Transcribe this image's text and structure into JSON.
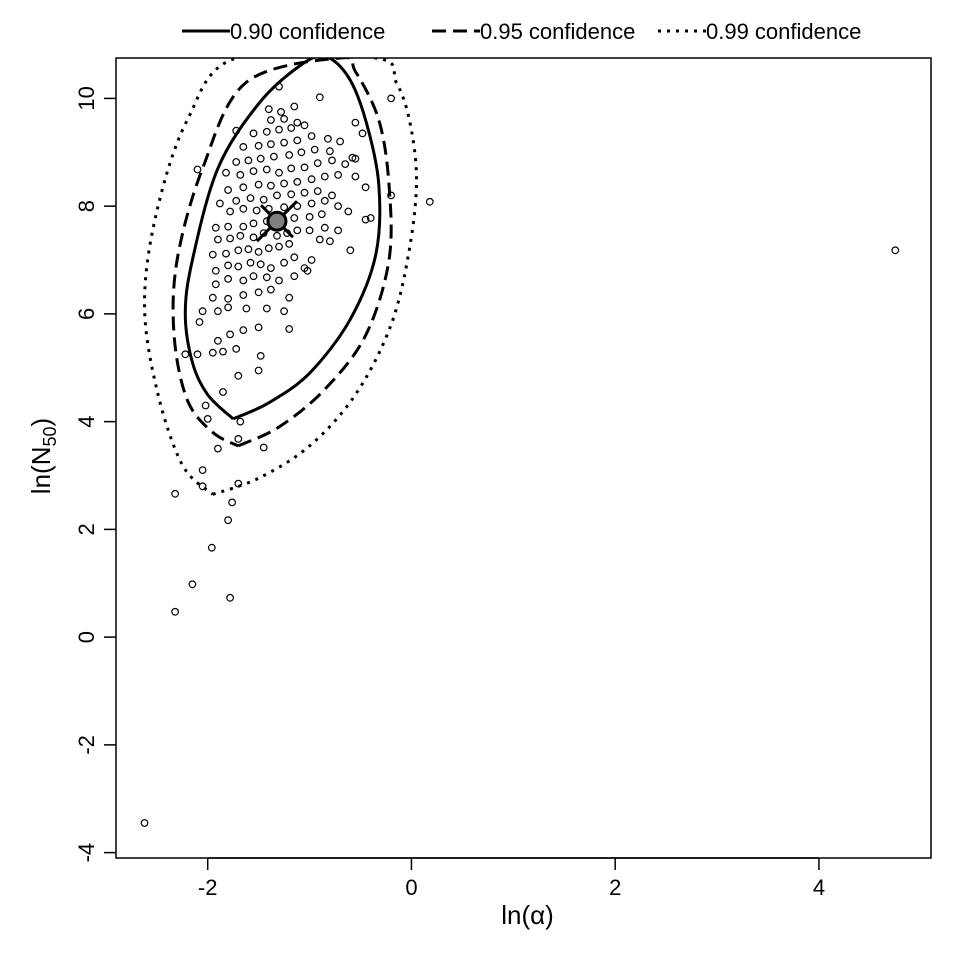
{
  "chart_data": {
    "type": "scatter",
    "xlabel": "ln(α)",
    "ylabel": "ln(N50)",
    "ylabel_parts": {
      "pre": "ln(",
      "sub": "50",
      "post": ")",
      "base": "N"
    },
    "xlim": [
      -2.9,
      5.1
    ],
    "ylim": [
      -4.1,
      10.75
    ],
    "x_ticks": [
      -2,
      0,
      2,
      4
    ],
    "y_ticks": [
      -4,
      -2,
      0,
      2,
      4,
      6,
      8,
      10
    ],
    "x_tick_labels": [
      "-2",
      "0",
      "2",
      "4"
    ],
    "y_tick_labels": [
      "-4",
      "-2",
      "0",
      "2",
      "4",
      "6",
      "8",
      "10"
    ],
    "legend": {
      "placement": "top",
      "entries": [
        {
          "label": "0.90 confidence",
          "style": "solid"
        },
        {
          "label": "0.95 confidence",
          "style": "dashed"
        },
        {
          "label": "0.99 confidence",
          "style": "dotted"
        }
      ]
    },
    "best_estimate": {
      "x": -1.32,
      "y": 7.72
    },
    "ellipses": [
      {
        "confidence": 0.9,
        "style": "solid",
        "points": [
          [
            -1.75,
            4.05
          ],
          [
            -1.4,
            4.35
          ],
          [
            -1.0,
            4.9
          ],
          [
            -0.6,
            5.9
          ],
          [
            -0.35,
            7.1
          ],
          [
            -0.32,
            8.4
          ],
          [
            -0.45,
            9.6
          ],
          [
            -0.62,
            10.4
          ],
          [
            -0.85,
            10.78
          ],
          [
            -1.1,
            10.6
          ],
          [
            -1.5,
            9.9
          ],
          [
            -1.9,
            8.7
          ],
          [
            -2.15,
            7.0
          ],
          [
            -2.22,
            6.0
          ],
          [
            -2.15,
            5.1
          ],
          [
            -2.0,
            4.5
          ],
          [
            -1.75,
            4.05
          ]
        ]
      },
      {
        "confidence": 0.95,
        "style": "dashed",
        "points": [
          [
            -1.7,
            3.55
          ],
          [
            -1.3,
            3.9
          ],
          [
            -0.85,
            4.6
          ],
          [
            -0.45,
            5.6
          ],
          [
            -0.22,
            7.0
          ],
          [
            -0.22,
            8.4
          ],
          [
            -0.32,
            9.6
          ],
          [
            -0.55,
            10.5
          ],
          [
            -0.7,
            10.75
          ],
          [
            -1.62,
            10.3
          ],
          [
            -2.05,
            8.7
          ],
          [
            -2.3,
            7.0
          ],
          [
            -2.33,
            5.6
          ],
          [
            -2.2,
            4.4
          ],
          [
            -1.95,
            3.8
          ],
          [
            -1.7,
            3.55
          ]
        ]
      },
      {
        "confidence": 0.99,
        "style": "dotted",
        "points": [
          [
            -1.95,
            2.65
          ],
          [
            -1.5,
            2.95
          ],
          [
            -1.0,
            3.55
          ],
          [
            -0.55,
            4.5
          ],
          [
            -0.2,
            5.8
          ],
          [
            -0.02,
            7.2
          ],
          [
            0.05,
            8.5
          ],
          [
            -0.02,
            9.6
          ],
          [
            -0.15,
            10.3
          ],
          [
            -0.35,
            10.75
          ],
          [
            -1.72,
            10.75
          ],
          [
            -2.2,
            9.6
          ],
          [
            -2.5,
            7.9
          ],
          [
            -2.62,
            6.2
          ],
          [
            -2.5,
            4.6
          ],
          [
            -2.25,
            3.2
          ],
          [
            -1.95,
            2.65
          ]
        ]
      }
    ],
    "points": [
      [
        -2.62,
        -3.45
      ],
      [
        -2.32,
        0.47
      ],
      [
        -2.15,
        0.98
      ],
      [
        -1.78,
        0.73
      ],
      [
        -1.96,
        1.66
      ],
      [
        -1.8,
        2.17
      ],
      [
        -1.76,
        2.5
      ],
      [
        -2.32,
        2.66
      ],
      [
        -2.05,
        2.8
      ],
      [
        -1.7,
        2.85
      ],
      [
        -2.05,
        3.1
      ],
      [
        -1.9,
        3.5
      ],
      [
        -1.45,
        3.52
      ],
      [
        -1.7,
        3.68
      ],
      [
        -2.0,
        4.05
      ],
      [
        -2.02,
        4.3
      ],
      [
        -1.68,
        4.0
      ],
      [
        -1.85,
        4.55
      ],
      [
        -1.5,
        4.95
      ],
      [
        -1.7,
        4.85
      ],
      [
        -1.48,
        5.22
      ],
      [
        -2.22,
        5.25
      ],
      [
        -2.1,
        5.25
      ],
      [
        -1.95,
        5.28
      ],
      [
        -1.85,
        5.3
      ],
      [
        -1.72,
        5.35
      ],
      [
        -1.9,
        5.5
      ],
      [
        -1.78,
        5.62
      ],
      [
        -1.65,
        5.7
      ],
      [
        -1.5,
        5.75
      ],
      [
        -1.2,
        5.72
      ],
      [
        -2.08,
        5.85
      ],
      [
        -2.05,
        6.05
      ],
      [
        -1.9,
        6.05
      ],
      [
        -1.8,
        6.12
      ],
      [
        -1.62,
        6.1
      ],
      [
        -1.42,
        6.1
      ],
      [
        -1.25,
        6.05
      ],
      [
        -1.95,
        6.3
      ],
      [
        -1.8,
        6.28
      ],
      [
        -1.65,
        6.35
      ],
      [
        -1.5,
        6.4
      ],
      [
        -1.38,
        6.45
      ],
      [
        -1.2,
        6.3
      ],
      [
        -1.92,
        6.55
      ],
      [
        -1.8,
        6.65
      ],
      [
        -1.65,
        6.62
      ],
      [
        -1.55,
        6.7
      ],
      [
        -1.42,
        6.68
      ],
      [
        -1.3,
        6.62
      ],
      [
        -1.15,
        6.7
      ],
      [
        -1.05,
        6.85
      ],
      [
        -0.98,
        7.0
      ],
      [
        -1.02,
        6.8
      ],
      [
        -1.92,
        6.8
      ],
      [
        -1.8,
        6.9
      ],
      [
        -1.7,
        6.88
      ],
      [
        -1.58,
        6.95
      ],
      [
        -1.48,
        6.92
      ],
      [
        -1.38,
        6.85
      ],
      [
        -1.25,
        6.95
      ],
      [
        -1.15,
        7.05
      ],
      [
        -1.95,
        7.1
      ],
      [
        -1.82,
        7.12
      ],
      [
        -1.7,
        7.18
      ],
      [
        -1.6,
        7.2
      ],
      [
        -1.5,
        7.15
      ],
      [
        -1.4,
        7.22
      ],
      [
        -1.3,
        7.25
      ],
      [
        -1.2,
        7.3
      ],
      [
        -0.9,
        7.38
      ],
      [
        -0.8,
        7.35
      ],
      [
        -0.6,
        7.18
      ],
      [
        -1.9,
        7.38
      ],
      [
        -1.78,
        7.4
      ],
      [
        -1.68,
        7.45
      ],
      [
        -1.55,
        7.42
      ],
      [
        -1.45,
        7.5
      ],
      [
        -1.32,
        7.45
      ],
      [
        -1.22,
        7.5
      ],
      [
        -1.12,
        7.55
      ],
      [
        -1.0,
        7.55
      ],
      [
        -0.85,
        7.6
      ],
      [
        -0.72,
        7.55
      ],
      [
        -1.92,
        7.6
      ],
      [
        -1.8,
        7.62
      ],
      [
        -1.65,
        7.62
      ],
      [
        -1.55,
        7.68
      ],
      [
        -1.42,
        7.72
      ],
      [
        -1.28,
        7.75
      ],
      [
        -1.15,
        7.78
      ],
      [
        -1.0,
        7.8
      ],
      [
        -0.88,
        7.85
      ],
      [
        -0.45,
        7.75
      ],
      [
        -0.4,
        7.78
      ],
      [
        -1.78,
        7.9
      ],
      [
        -1.65,
        7.95
      ],
      [
        -1.52,
        7.92
      ],
      [
        -1.4,
        7.95
      ],
      [
        -1.25,
        7.98
      ],
      [
        -1.12,
        8.0
      ],
      [
        -0.98,
        8.05
      ],
      [
        -0.85,
        8.1
      ],
      [
        -0.72,
        8.0
      ],
      [
        -0.62,
        7.9
      ],
      [
        -1.88,
        8.05
      ],
      [
        -1.72,
        8.1
      ],
      [
        -1.58,
        8.15
      ],
      [
        -1.45,
        8.12
      ],
      [
        -1.32,
        8.2
      ],
      [
        -1.18,
        8.22
      ],
      [
        -1.05,
        8.25
      ],
      [
        -0.92,
        8.28
      ],
      [
        -0.78,
        8.2
      ],
      [
        -0.2,
        8.2
      ],
      [
        0.18,
        8.08
      ],
      [
        -1.8,
        8.3
      ],
      [
        -1.65,
        8.35
      ],
      [
        -1.5,
        8.4
      ],
      [
        -1.38,
        8.38
      ],
      [
        -1.25,
        8.42
      ],
      [
        -1.12,
        8.45
      ],
      [
        -0.98,
        8.5
      ],
      [
        -0.85,
        8.55
      ],
      [
        -0.72,
        8.58
      ],
      [
        -0.55,
        8.55
      ],
      [
        -0.45,
        8.35
      ],
      [
        -1.82,
        8.62
      ],
      [
        -1.68,
        8.58
      ],
      [
        -1.55,
        8.65
      ],
      [
        -1.42,
        8.68
      ],
      [
        -1.3,
        8.62
      ],
      [
        -1.18,
        8.7
      ],
      [
        -1.05,
        8.72
      ],
      [
        -0.92,
        8.8
      ],
      [
        -0.78,
        8.85
      ],
      [
        -0.65,
        8.78
      ],
      [
        -0.55,
        8.88
      ],
      [
        -2.1,
        8.68
      ],
      [
        -1.72,
        8.82
      ],
      [
        -1.6,
        8.85
      ],
      [
        -1.48,
        8.88
      ],
      [
        -1.35,
        8.92
      ],
      [
        -1.2,
        8.95
      ],
      [
        -1.08,
        9.0
      ],
      [
        -0.95,
        9.05
      ],
      [
        -0.8,
        9.02
      ],
      [
        -1.65,
        9.1
      ],
      [
        -1.5,
        9.12
      ],
      [
        -1.38,
        9.15
      ],
      [
        -1.25,
        9.18
      ],
      [
        -1.12,
        9.22
      ],
      [
        -0.98,
        9.3
      ],
      [
        -0.82,
        9.25
      ],
      [
        -0.7,
        9.2
      ],
      [
        -1.55,
        9.35
      ],
      [
        -1.42,
        9.38
      ],
      [
        -1.3,
        9.42
      ],
      [
        -1.18,
        9.45
      ],
      [
        -1.05,
        9.5
      ],
      [
        -1.72,
        9.4
      ],
      [
        -1.38,
        9.6
      ],
      [
        -1.25,
        9.62
      ],
      [
        -1.12,
        9.55
      ],
      [
        -0.55,
        9.55
      ],
      [
        -0.48,
        9.35
      ],
      [
        -1.4,
        9.8
      ],
      [
        -1.28,
        9.75
      ],
      [
        -1.15,
        9.85
      ],
      [
        -0.9,
        10.02
      ],
      [
        -1.3,
        10.22
      ],
      [
        -0.2,
        10.0
      ],
      [
        4.75,
        7.18
      ],
      [
        -0.58,
        8.9
      ]
    ]
  }
}
